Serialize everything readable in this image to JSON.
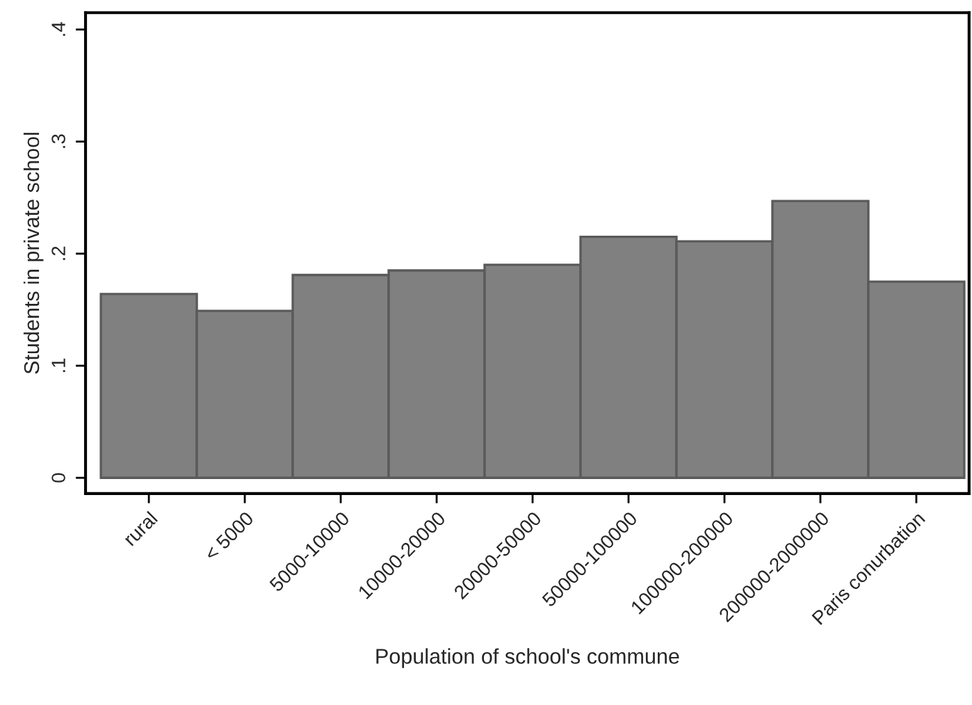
{
  "chart_data": {
    "type": "bar",
    "xlabel": "Population of school's commune",
    "ylabel": "Students in private school",
    "categories": [
      "rural",
      "< 5000",
      "5000-10000",
      "10000-20000",
      "20000-50000",
      "50000-100000",
      "100000-200000",
      "200000-2000000",
      "Paris conurbation"
    ],
    "values": [
      0.164,
      0.149,
      0.181,
      0.185,
      0.19,
      0.215,
      0.211,
      0.247,
      0.175
    ],
    "color": "#808080",
    "ylim": [
      -0.014,
      0.415
    ],
    "yticks": [
      {
        "value": 0,
        "label": "0"
      },
      {
        "value": 0.1,
        "label": ".1"
      },
      {
        "value": 0.2,
        "label": ".2"
      },
      {
        "value": 0.3,
        "label": ".3"
      },
      {
        "value": 0.4,
        "label": ".4"
      }
    ],
    "grid": false
  }
}
